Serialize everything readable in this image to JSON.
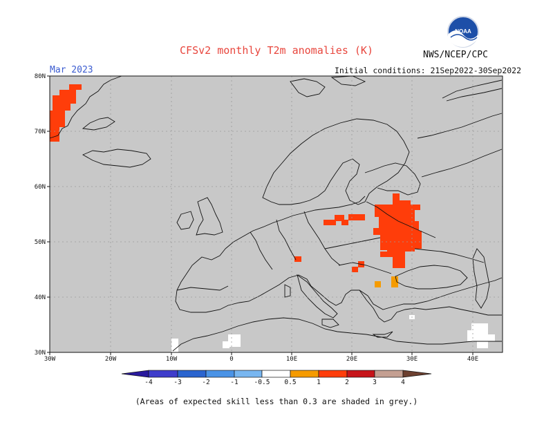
{
  "header": {
    "title": "CFSv2 monthly T2m anomalies (K)",
    "agency": "NWS/NCEP/CPC",
    "logo_text": "NOAA",
    "valid_month": "Mar 2023",
    "initial_conditions": "Initial conditions: 21Sep2022-30Sep2022"
  },
  "map": {
    "background_color": "#c8c8c8",
    "grid": true,
    "lon_labels": [
      "30W",
      "20W",
      "10W",
      "0",
      "10E",
      "20E",
      "30E",
      "40E"
    ],
    "lat_labels": [
      "30N",
      "40N",
      "50N",
      "60N",
      "70N",
      "80N"
    ]
  },
  "colorbar": {
    "labels": [
      "-4",
      "-3",
      "-2",
      "-1",
      "-0.5",
      "0.5",
      "1",
      "2",
      "3",
      "4"
    ],
    "colors": [
      "#2a1a9e",
      "#3e3ccb",
      "#2a64cf",
      "#4a93e6",
      "#78b6f0",
      "#ffffff",
      "#f59b00",
      "#ff3d0a",
      "#c7141a",
      "#9e0a0a",
      "#c49f92",
      "#6d4030"
    ]
  },
  "footnote": "(Areas of expected skill less than 0.3 are shaded in grey.)"
}
